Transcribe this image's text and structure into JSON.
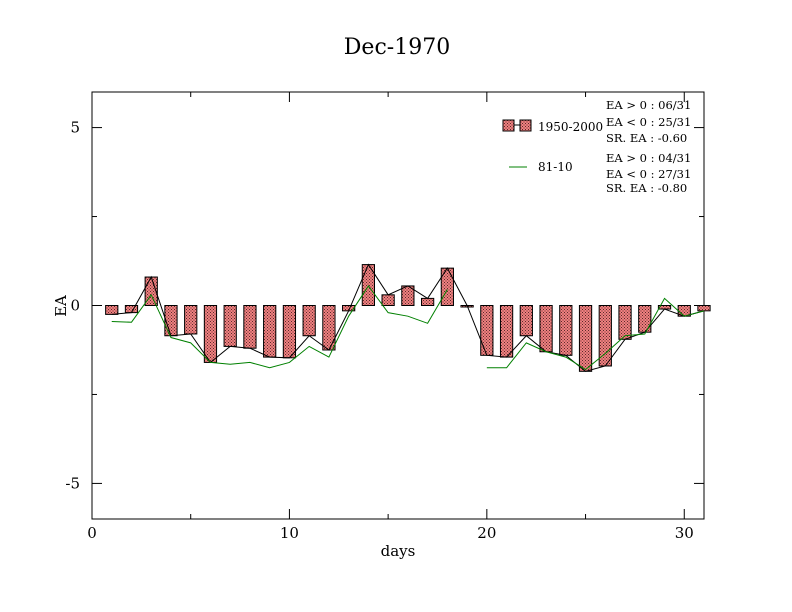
{
  "chart_data": {
    "type": "bar",
    "title": "Dec-1970",
    "xlabel": "days",
    "ylabel": "EA",
    "xlim": [
      0,
      31
    ],
    "ylim": [
      -6,
      6
    ],
    "x_ticks": [
      0,
      10,
      20,
      30
    ],
    "y_ticks": [
      -5,
      0,
      5
    ],
    "x_tick_labels": [
      "0",
      "10",
      "20",
      "30"
    ],
    "y_tick_labels": [
      "-5",
      "0",
      "5"
    ],
    "grid": false,
    "legend_position": "top-right",
    "colors": {
      "bar_fill": "#f08080",
      "bar_stroke": "#000000",
      "line_8110": "#008000",
      "line_bars": "#000000"
    },
    "x": [
      1,
      2,
      3,
      4,
      5,
      6,
      7,
      8,
      9,
      10,
      11,
      12,
      13,
      14,
      15,
      16,
      17,
      18,
      19,
      20,
      21,
      22,
      23,
      24,
      25,
      26,
      27,
      28,
      29,
      30,
      31
    ],
    "series": [
      {
        "name": "1950-2000",
        "type": "bar",
        "values": [
          -0.25,
          -0.2,
          0.8,
          -0.85,
          -0.8,
          -1.6,
          -1.15,
          -1.2,
          -1.45,
          -1.47,
          -0.85,
          -1.25,
          -0.15,
          1.15,
          0.3,
          0.55,
          0.2,
          1.05,
          0.0,
          -1.4,
          -1.45,
          -0.85,
          -1.3,
          -1.4,
          -1.85,
          -1.7,
          -0.95,
          -0.75,
          -0.1,
          -0.3,
          -0.15
        ]
      },
      {
        "name": "81-10",
        "type": "line",
        "values": [
          -0.45,
          -0.47,
          0.3,
          -0.9,
          -1.05,
          -1.6,
          -1.65,
          -1.6,
          -1.75,
          -1.6,
          -1.15,
          -1.45,
          -0.3,
          0.55,
          -0.2,
          -0.3,
          -0.5,
          0.45,
          null,
          -1.75,
          -1.75,
          -1.05,
          -1.3,
          -1.45,
          -1.8,
          -1.35,
          -0.85,
          -0.8,
          0.2,
          -0.3,
          -0.15
        ]
      }
    ],
    "annotations": {
      "group1": [
        "EA > 0 : 06/31",
        "EA < 0 : 25/31",
        "SR. EA : -0.60"
      ],
      "group2": [
        "EA > 0 : 04/31",
        "EA < 0 : 27/31",
        "SR. EA : -0.80"
      ]
    }
  }
}
